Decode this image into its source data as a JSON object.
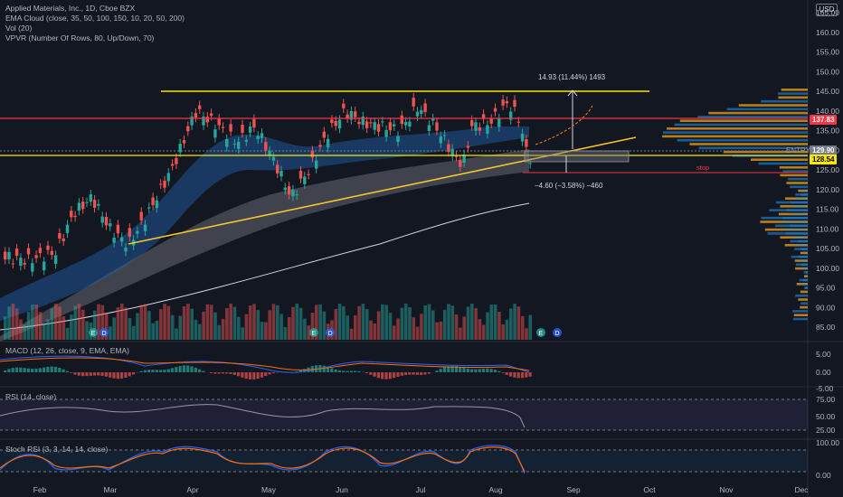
{
  "chart_header": {
    "title": "Applied Materials, Inc., 1D, Cboe BZX",
    "indicators": [
      "EMA Cloud (close, 35, 50, 100, 150, 10, 20, 50, 200)",
      "Vol (20)",
      "VPVR (Number Of Rows, 80, Up/Down, 70)"
    ]
  },
  "currency": "USD",
  "x_axis_labels": [
    "Feb",
    "Mar",
    "Apr",
    "May",
    "Jun",
    "Jul",
    "Aug",
    "Sep",
    "Oct",
    "Nov",
    "Dec"
  ],
  "main_price_axis": [
    "165.00",
    "160.00",
    "155.00",
    "150.00",
    "145.00",
    "140.00",
    "135.00",
    "130.00",
    "125.00",
    "120.00",
    "115.00",
    "110.00",
    "105.00",
    "100.00",
    "95.00",
    "90.00",
    "85.00"
  ],
  "price_tags": {
    "last": {
      "value": "137.83",
      "color": "#f23645"
    },
    "entry": {
      "label": "ENTRY",
      "value": "129.90",
      "color": "#787b86"
    },
    "stop_level": {
      "value": "128.54",
      "color": "#f7e600"
    }
  },
  "labels": {
    "stop": "stop",
    "target_measure": "14.93 (11.44%) 1493",
    "risk_measure": "−4.60 (−3.58%) −460"
  },
  "event_markers": [
    "E",
    "D",
    "E",
    "D",
    "E",
    "D"
  ],
  "panes": {
    "macd": {
      "legend": "MACD (12, 26, close, 9, EMA, EMA)",
      "axis": [
        "5.00",
        "0.00",
        "-5.00"
      ]
    },
    "rsi": {
      "legend": "RSI (14, close)",
      "axis": [
        "75.00",
        "50.00",
        "25.00"
      ]
    },
    "stoch": {
      "legend": "Stoch RSI (3, 3, 14, 14, close)",
      "axis": [
        "100.00",
        "0.00"
      ]
    }
  },
  "colors": {
    "background": "#131722",
    "up": "#26a69a",
    "down": "#ef5350",
    "resistance": "#f7e600",
    "support_line": "#f7c52b",
    "stop_line": "#f23645"
  }
}
